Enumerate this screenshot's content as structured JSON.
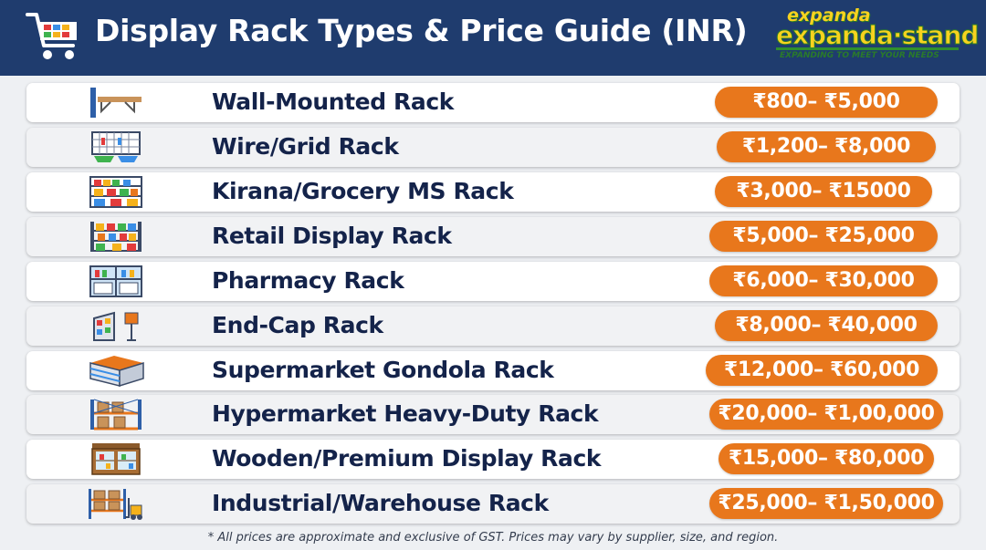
{
  "header": {
    "title": "Display Rack Types & Price Guide (INR)",
    "icon": "shopping-cart-icon"
  },
  "logo": {
    "top_text": "expanda",
    "main_text": "expanda·stand",
    "tagline": "EXPANDING TO MEET YOUR NEEDS",
    "colors": {
      "fill": "#f7d21f",
      "outline": "#2a7a2a"
    }
  },
  "rows": [
    {
      "label": "Wall-Mounted Rack",
      "price": "₹800– ₹5,000",
      "icon": "wall-shelf-icon"
    },
    {
      "label": "Wire/Grid Rack",
      "price": "₹1,200– ₹8,000",
      "icon": "wire-grid-icon"
    },
    {
      "label": "Kirana/Grocery MS Rack",
      "price": "₹3,000– ₹15000",
      "icon": "grocery-rack-icon"
    },
    {
      "label": "Retail Display Rack",
      "price": "₹5,000– ₹25,000",
      "icon": "retail-rack-icon"
    },
    {
      "label": "Pharmacy Rack",
      "price": "₹6,000– ₹30,000",
      "icon": "pharmacy-cabinet-icon"
    },
    {
      "label": "End-Cap Rack",
      "price": "₹8,000– ₹40,000",
      "icon": "end-cap-icon"
    },
    {
      "label": "Supermarket Gondola Rack",
      "price": "₹12,000– ₹60,000",
      "icon": "gondola-icon"
    },
    {
      "label": "Hypermarket Heavy-Duty Rack",
      "price": "₹20,000– ₹1,00,000",
      "icon": "heavy-duty-rack-icon"
    },
    {
      "label": "Wooden/Premium Display Rack",
      "price": "₹15,000– ₹80,000",
      "icon": "wooden-cabinet-icon"
    },
    {
      "label": "Industrial/Warehouse Rack",
      "price": "₹25,000– ₹1,50,000",
      "icon": "warehouse-forklift-icon"
    }
  ],
  "footnote": "* All prices are approximate and exclusive of GST. Prices may vary by supplier, size, and region.",
  "colors": {
    "header_bg": "#1f3c6e",
    "price_pill": "#e8771c",
    "label_text": "#14234a",
    "page_bg": "#eef0f3"
  }
}
